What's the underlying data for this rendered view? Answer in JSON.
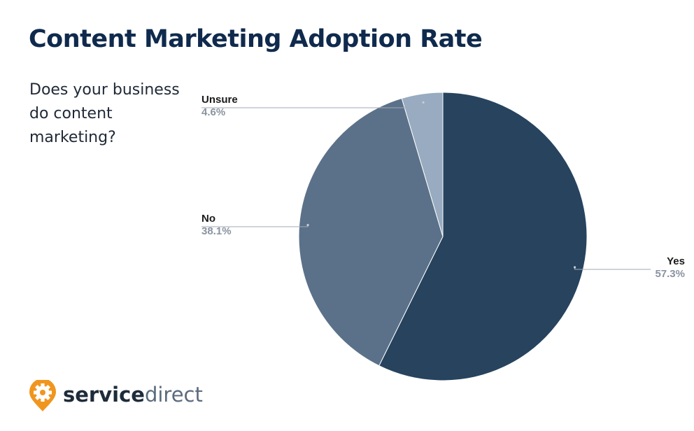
{
  "chart_data": {
    "type": "pie",
    "title": "Content Marketing Adoption Rate",
    "subtitle": "Does your business do content marketing?",
    "slices": [
      {
        "label": "Yes",
        "value": 57.3,
        "display": "57.3%",
        "color": "#27435e"
      },
      {
        "label": "No",
        "value": 38.1,
        "display": "38.1%",
        "color": "#5b7189"
      },
      {
        "label": "Unsure",
        "value": 4.6,
        "display": "4.6%",
        "color": "#98abc0"
      }
    ],
    "legend": "none",
    "label_color": "#1a1a1a",
    "value_color": "#8a93a0"
  },
  "brand": {
    "name_bold": "service",
    "name_regular": "direct",
    "icon": "gear-map-pin-icon",
    "icon_color": "#f0961e"
  }
}
